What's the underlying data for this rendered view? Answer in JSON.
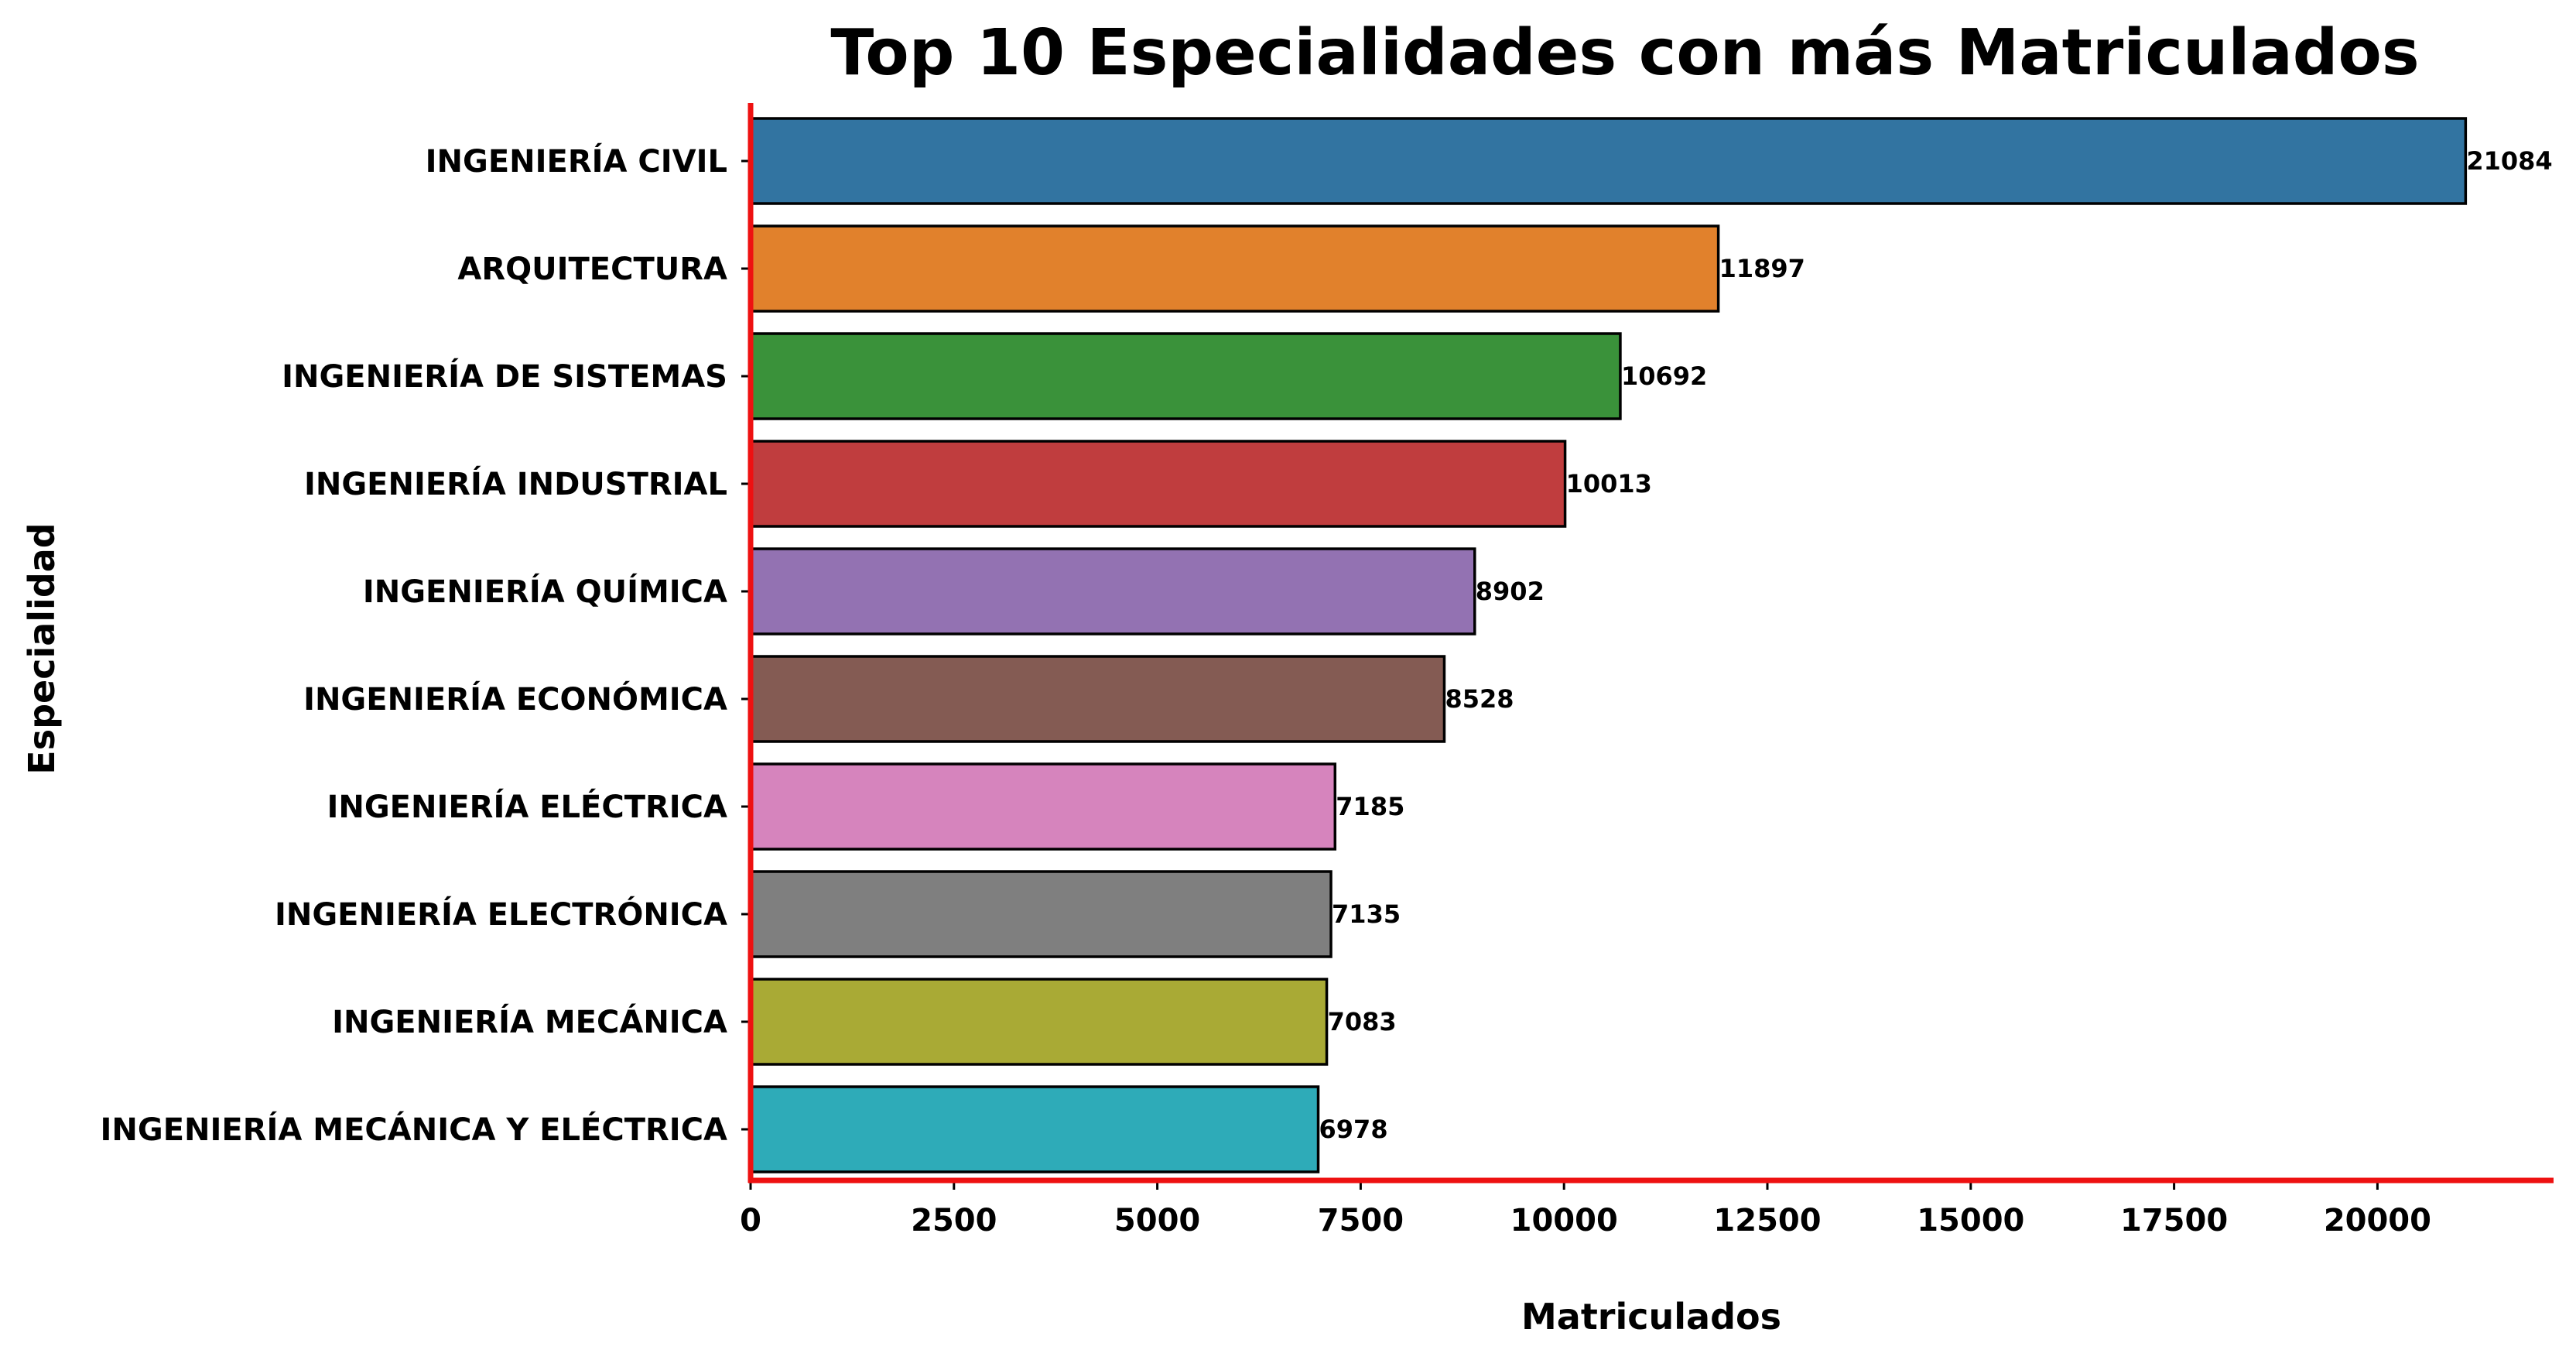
{
  "chart_data": {
    "type": "bar",
    "orientation": "horizontal",
    "title": "Top 10 Especialidades con más Matriculados",
    "xlabel": "Matriculados",
    "ylabel": "Especialidad",
    "xlim": [
      0,
      22200
    ],
    "xticks": [
      0,
      2500,
      5000,
      7500,
      10000,
      12500,
      15000,
      17500,
      20000
    ],
    "grid": false,
    "axis_color": "#ee1111",
    "bar_edge_color": "#000000",
    "categories": [
      "INGENIERÍA CIVIL",
      "ARQUITECTURA",
      "INGENIERÍA DE SISTEMAS",
      "INGENIERÍA INDUSTRIAL",
      "INGENIERÍA QUÍMICA",
      "INGENIERÍA ECONÓMICA",
      "INGENIERÍA ELÉCTRICA",
      "INGENIERÍA ELECTRÓNICA",
      "INGENIERÍA MECÁNICA",
      "INGENIERÍA MECÁNICA Y ELÉCTRICA"
    ],
    "values": [
      21084,
      11897,
      10692,
      10013,
      8902,
      8528,
      7185,
      7135,
      7083,
      6978
    ],
    "colors": [
      "#3274a1",
      "#e1812c",
      "#3a923a",
      "#c03d3e",
      "#9372b2",
      "#845b53",
      "#d684bd",
      "#7f7f7f",
      "#a9aa35",
      "#2eabb8"
    ]
  }
}
